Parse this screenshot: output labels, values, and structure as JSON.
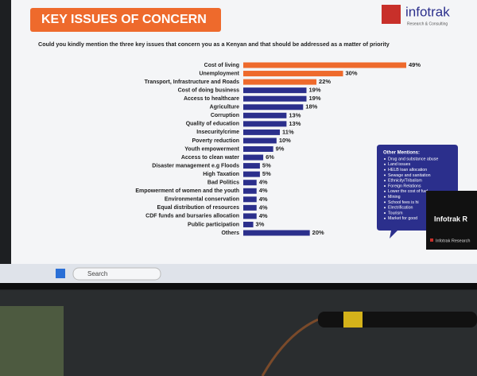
{
  "chart_data": {
    "type": "bar",
    "orientation": "horizontal",
    "title": "KEY ISSUES OF CONCERN",
    "subtitle": "Could you kindly mention the three key issues that concern you as a Kenyan and that should be addressed as a matter of priority",
    "categories": [
      "Cost of living",
      "Unemployment",
      "Transport, Infrastructure and Roads",
      "Cost of doing business",
      "Access to healthcare",
      "Agriculture",
      "Corruption",
      "Quality of education",
      "Insecurity/crime",
      "Poverty reduction",
      "Youth empowerment",
      "Access to clean water",
      "Disaster management e.g Floods",
      "High Taxation",
      "Bad Politics",
      "Empowerment of women and the youth",
      "Environmental conservation",
      "Equal distribution of resources",
      "CDF funds and bursaries allocation",
      "Public participation",
      "Others"
    ],
    "values": [
      49,
      30,
      22,
      19,
      19,
      18,
      13,
      13,
      11,
      10,
      9,
      6,
      5,
      5,
      4,
      4,
      4,
      4,
      4,
      3,
      20
    ],
    "value_labels": [
      "49%",
      "30%",
      "22%",
      "19%",
      "19%",
      "18%",
      "13%",
      "13%",
      "11%",
      "10%",
      "9%",
      "6%",
      "5%",
      "5%",
      "4%",
      "4%",
      "4%",
      "4%",
      "4%",
      "3%",
      "20%"
    ],
    "colors": [
      "#ee6a2c",
      "#ee6a2c",
      "#ee6a2c",
      "#2b2f8c",
      "#2b2f8c",
      "#2b2f8c",
      "#2b2f8c",
      "#2b2f8c",
      "#2b2f8c",
      "#2b2f8c",
      "#2b2f8c",
      "#2b2f8c",
      "#2b2f8c",
      "#2b2f8c",
      "#2b2f8c",
      "#2b2f8c",
      "#2b2f8c",
      "#2b2f8c",
      "#2b2f8c",
      "#2b2f8c",
      "#2b2f8c"
    ]
  },
  "logo": {
    "name": "infotrak",
    "tagline": "Research & Consulting"
  },
  "other_mentions": {
    "title": "Other Mentions:",
    "items": [
      "Drug and substance abuse",
      "Land issues",
      "HELB loan allocation",
      "Sewage and sanitation",
      "Ethnicity/Tribalism",
      "Foreign Relations",
      "Lower the cost of fuel",
      "Mining",
      "School fees is hi",
      "Electrification",
      "Tourism",
      "Market for good"
    ]
  },
  "overlay": {
    "title": "Infotrak R",
    "footer": "Infotrak Research"
  },
  "taskbar": {
    "search": "Search"
  }
}
